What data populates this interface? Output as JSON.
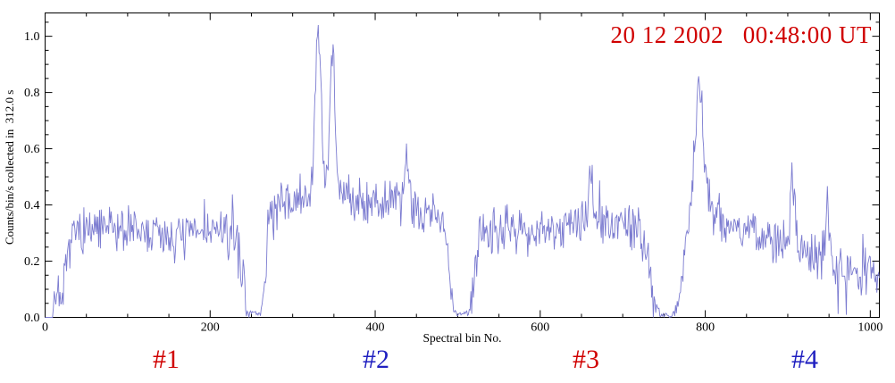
{
  "annotation": {
    "date_text": "20 12 2002   00:48:00 UT",
    "color": "#d00000"
  },
  "chart_data": {
    "type": "line",
    "title": "",
    "xlabel": "Spectral bin No.",
    "ylabel": "Counts/bin/s collected in  312.0 s",
    "xlim": [
      0,
      1011
    ],
    "ylim": [
      0,
      1.083
    ],
    "x_ticks": [
      0,
      200,
      400,
      600,
      800,
      1000
    ],
    "y_ticks": [
      0,
      0.2,
      0.4,
      0.6,
      0.8,
      1.0
    ],
    "y_tick_labels": [
      "0.0",
      "0.2",
      "0.4",
      "0.6",
      "0.8",
      "1.0"
    ],
    "grid": false,
    "legend": "none",
    "axis_color": "#000000",
    "line_color": "#7b7bd0",
    "noise_seed": 7,
    "noise_amplitude": 0.05,
    "envelope": [
      [
        0,
        0
      ],
      [
        9,
        0
      ],
      [
        12,
        0.08
      ],
      [
        16,
        0.11
      ],
      [
        20,
        0.03
      ],
      [
        26,
        0.18
      ],
      [
        32,
        0.3
      ],
      [
        60,
        0.31
      ],
      [
        90,
        0.32
      ],
      [
        120,
        0.3
      ],
      [
        160,
        0.29
      ],
      [
        200,
        0.31
      ],
      [
        230,
        0.29
      ],
      [
        240,
        0.15
      ],
      [
        245,
        0.02
      ],
      [
        261,
        0.01
      ],
      [
        266,
        0.12
      ],
      [
        271,
        0.36
      ],
      [
        285,
        0.4
      ],
      [
        310,
        0.42
      ],
      [
        330,
        0.45
      ],
      [
        350,
        0.46
      ],
      [
        370,
        0.43
      ],
      [
        400,
        0.41
      ],
      [
        430,
        0.4
      ],
      [
        460,
        0.38
      ],
      [
        482,
        0.36
      ],
      [
        489,
        0.18
      ],
      [
        495,
        0.02
      ],
      [
        513,
        0.01
      ],
      [
        519,
        0.12
      ],
      [
        526,
        0.3
      ],
      [
        550,
        0.32
      ],
      [
        580,
        0.31
      ],
      [
        610,
        0.32
      ],
      [
        640,
        0.33
      ],
      [
        670,
        0.33
      ],
      [
        700,
        0.34
      ],
      [
        718,
        0.31
      ],
      [
        730,
        0.22
      ],
      [
        738,
        0.05
      ],
      [
        748,
        0.01
      ],
      [
        763,
        0.01
      ],
      [
        769,
        0.08
      ],
      [
        776,
        0.28
      ],
      [
        784,
        0.45
      ],
      [
        789,
        0.72
      ],
      [
        793,
        0.85
      ],
      [
        796,
        0.74
      ],
      [
        800,
        0.52
      ],
      [
        806,
        0.4
      ],
      [
        815,
        0.36
      ],
      [
        835,
        0.33
      ],
      [
        860,
        0.3
      ],
      [
        885,
        0.27
      ],
      [
        910,
        0.24
      ],
      [
        935,
        0.21
      ],
      [
        960,
        0.19
      ],
      [
        985,
        0.17
      ],
      [
        1011,
        0.14
      ]
    ],
    "peaks": [
      {
        "x": 331,
        "height": 0.56,
        "width": 3.5
      },
      {
        "x": 348,
        "height": 0.52,
        "width": 3
      },
      {
        "x": 438,
        "height": 0.19,
        "width": 2.5
      },
      {
        "x": 661,
        "height": 0.19,
        "width": 2.5
      },
      {
        "x": 906,
        "height": 0.26,
        "width": 2.5
      },
      {
        "x": 948,
        "height": 0.2,
        "width": 2.5
      }
    ],
    "segment_labels": [
      {
        "label": "#1",
        "color": "#d00000",
        "x": 186
      },
      {
        "label": "#2",
        "color": "#2020c0",
        "x": 421
      },
      {
        "label": "#3",
        "color": "#d00000",
        "x": 656
      },
      {
        "label": "#4",
        "color": "#2020c0",
        "x": 901
      }
    ]
  }
}
